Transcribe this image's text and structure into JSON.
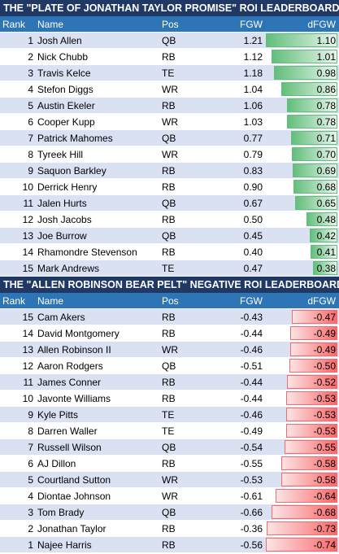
{
  "positive": {
    "title": "THE \"PLATE OF JONATHAN TAYLOR PROMISE\" ROI LEADERBOARD",
    "headers": {
      "rank": "Rank",
      "name": "Name",
      "pos": "Pos",
      "fgw": "FGW",
      "dfgw": "dFGW"
    },
    "rows": [
      {
        "rank": "1",
        "name": "Josh Allen",
        "pos": "QB",
        "fgw": "1.21",
        "dfgw": "1.10",
        "dfgw_value": 1.1
      },
      {
        "rank": "2",
        "name": "Nick Chubb",
        "pos": "RB",
        "fgw": "1.12",
        "dfgw": "1.01",
        "dfgw_value": 1.01
      },
      {
        "rank": "3",
        "name": "Travis Kelce",
        "pos": "TE",
        "fgw": "1.18",
        "dfgw": "0.98",
        "dfgw_value": 0.98
      },
      {
        "rank": "4",
        "name": "Stefon Diggs",
        "pos": "WR",
        "fgw": "1.04",
        "dfgw": "0.86",
        "dfgw_value": 0.86
      },
      {
        "rank": "5",
        "name": "Austin Ekeler",
        "pos": "RB",
        "fgw": "1.06",
        "dfgw": "0.78",
        "dfgw_value": 0.78
      },
      {
        "rank": "6",
        "name": "Cooper Kupp",
        "pos": "WR",
        "fgw": "1.03",
        "dfgw": "0.78",
        "dfgw_value": 0.78
      },
      {
        "rank": "7",
        "name": "Patrick Mahomes",
        "pos": "QB",
        "fgw": "0.77",
        "dfgw": "0.71",
        "dfgw_value": 0.71
      },
      {
        "rank": "8",
        "name": "Tyreek Hill",
        "pos": "WR",
        "fgw": "0.79",
        "dfgw": "0.70",
        "dfgw_value": 0.7
      },
      {
        "rank": "9",
        "name": "Saquon Barkley",
        "pos": "RB",
        "fgw": "0.83",
        "dfgw": "0.69",
        "dfgw_value": 0.69
      },
      {
        "rank": "10",
        "name": "Derrick Henry",
        "pos": "RB",
        "fgw": "0.90",
        "dfgw": "0.68",
        "dfgw_value": 0.68
      },
      {
        "rank": "11",
        "name": "Jalen Hurts",
        "pos": "QB",
        "fgw": "0.67",
        "dfgw": "0.65",
        "dfgw_value": 0.65
      },
      {
        "rank": "12",
        "name": "Josh Jacobs",
        "pos": "RB",
        "fgw": "0.50",
        "dfgw": "0.48",
        "dfgw_value": 0.48
      },
      {
        "rank": "13",
        "name": "Joe Burrow",
        "pos": "QB",
        "fgw": "0.45",
        "dfgw": "0.42",
        "dfgw_value": 0.42
      },
      {
        "rank": "14",
        "name": "Rhamondre Stevenson",
        "pos": "RB",
        "fgw": "0.40",
        "dfgw": "0.41",
        "dfgw_value": 0.41
      },
      {
        "rank": "15",
        "name": "Mark Andrews",
        "pos": "TE",
        "fgw": "0.47",
        "dfgw": "0.38",
        "dfgw_value": 0.38
      }
    ]
  },
  "negative": {
    "title": "THE \"ALLEN ROBINSON BEAR PELT\" NEGATIVE ROI LEADERBOARD",
    "headers": {
      "rank": "Rank",
      "name": "Name",
      "pos": "Pos",
      "fgw": "FGW",
      "dfgw": "dFGW"
    },
    "rows": [
      {
        "rank": "15",
        "name": "Cam Akers",
        "pos": "RB",
        "fgw": "-0.43",
        "dfgw": "-0.47",
        "dfgw_value": -0.47
      },
      {
        "rank": "14",
        "name": "David Montgomery",
        "pos": "RB",
        "fgw": "-0.44",
        "dfgw": "-0.49",
        "dfgw_value": -0.49
      },
      {
        "rank": "13",
        "name": "Allen Robinson II",
        "pos": "WR",
        "fgw": "-0.46",
        "dfgw": "-0.49",
        "dfgw_value": -0.49
      },
      {
        "rank": "12",
        "name": "Aaron Rodgers",
        "pos": "QB",
        "fgw": "-0.51",
        "dfgw": "-0.50",
        "dfgw_value": -0.5
      },
      {
        "rank": "11",
        "name": "James Conner",
        "pos": "RB",
        "fgw": "-0.44",
        "dfgw": "-0.52",
        "dfgw_value": -0.52
      },
      {
        "rank": "10",
        "name": "Javonte Williams",
        "pos": "RB",
        "fgw": "-0.44",
        "dfgw": "-0.53",
        "dfgw_value": -0.53
      },
      {
        "rank": "9",
        "name": "Kyle Pitts",
        "pos": "TE",
        "fgw": "-0.46",
        "dfgw": "-0.53",
        "dfgw_value": -0.53
      },
      {
        "rank": "8",
        "name": "Darren Waller",
        "pos": "TE",
        "fgw": "-0.49",
        "dfgw": "-0.53",
        "dfgw_value": -0.53
      },
      {
        "rank": "7",
        "name": "Russell Wilson",
        "pos": "QB",
        "fgw": "-0.54",
        "dfgw": "-0.55",
        "dfgw_value": -0.55
      },
      {
        "rank": "6",
        "name": "AJ Dillon",
        "pos": "RB",
        "fgw": "-0.55",
        "dfgw": "-0.58",
        "dfgw_value": -0.58
      },
      {
        "rank": "5",
        "name": "Courtland Sutton",
        "pos": "WR",
        "fgw": "-0.53",
        "dfgw": "-0.58",
        "dfgw_value": -0.58
      },
      {
        "rank": "4",
        "name": "Diontae Johnson",
        "pos": "WR",
        "fgw": "-0.61",
        "dfgw": "-0.64",
        "dfgw_value": -0.64
      },
      {
        "rank": "3",
        "name": "Tom Brady",
        "pos": "QB",
        "fgw": "-0.66",
        "dfgw": "-0.68",
        "dfgw_value": -0.68
      },
      {
        "rank": "2",
        "name": "Jonathan Taylor",
        "pos": "RB",
        "fgw": "-0.36",
        "dfgw": "-0.73",
        "dfgw_value": -0.73
      },
      {
        "rank": "1",
        "name": "Najee Harris",
        "pos": "RB",
        "fgw": "-0.56",
        "dfgw": "-0.74",
        "dfgw_value": -0.74
      }
    ]
  },
  "colors": {
    "title_bg": "#1f3864",
    "header_bg": "#2e75b6",
    "band": "#d9e1f2",
    "positive_bar": "#63be7b",
    "negative_bar": "#f8696b"
  }
}
